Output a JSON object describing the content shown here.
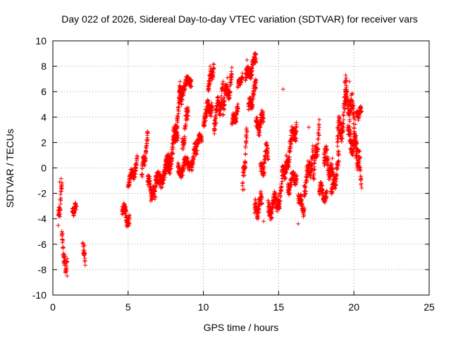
{
  "chart_data": {
    "type": "scatter",
    "title": "Day 022 of 2026, Sidereal Day-to-day VTEC variation (SDTVAR) for receiver vars",
    "xlabel": "GPS time / hours",
    "ylabel": "SDTVAR / TECUs",
    "xlim": [
      0,
      25
    ],
    "ylim": [
      -10,
      10
    ],
    "xticks": [
      0,
      5,
      10,
      15,
      20,
      25
    ],
    "yticks": [
      -10,
      -8,
      -6,
      -4,
      -2,
      0,
      2,
      4,
      6,
      8,
      10
    ],
    "grid": true,
    "marker": "+",
    "marker_color": "#ff0000",
    "segments": [
      {
        "x0": 0.35,
        "x1": 0.6,
        "y0": -4.5,
        "y1": -1.2,
        "jitter": 1.0
      },
      {
        "x0": 0.6,
        "x1": 0.85,
        "y0": -5.5,
        "y1": -8.3,
        "jitter": 0.8
      },
      {
        "x0": 0.85,
        "x1": 0.95,
        "y0": -8.3,
        "y1": -7.2,
        "jitter": 0.4
      },
      {
        "x0": 1.3,
        "x1": 1.55,
        "y0": -3.6,
        "y1": -3.0,
        "jitter": 0.4
      },
      {
        "x0": 2.0,
        "x1": 2.15,
        "y0": -6.2,
        "y1": -7.2,
        "jitter": 0.5
      },
      {
        "x0": 4.6,
        "x1": 5.1,
        "y0": -3.0,
        "y1": -4.3,
        "jitter": 0.7
      },
      {
        "x0": 5.0,
        "x1": 5.6,
        "y0": -1.2,
        "y1": 0.3,
        "jitter": 0.7
      },
      {
        "x0": 5.9,
        "x1": 6.3,
        "y0": -0.5,
        "y1": 2.3,
        "jitter": 0.8
      },
      {
        "x0": 6.3,
        "x1": 6.8,
        "y0": -1.0,
        "y1": -2.3,
        "jitter": 0.8
      },
      {
        "x0": 6.8,
        "x1": 7.8,
        "y0": -1.5,
        "y1": 0.5,
        "jitter": 1.0
      },
      {
        "x0": 7.5,
        "x1": 8.3,
        "y0": -0.5,
        "y1": 3.0,
        "jitter": 1.2
      },
      {
        "x0": 8.0,
        "x1": 8.6,
        "y0": 2.0,
        "y1": 6.2,
        "jitter": 1.2
      },
      {
        "x0": 8.4,
        "x1": 9.2,
        "y0": 6.0,
        "y1": 7.0,
        "jitter": 0.6
      },
      {
        "x0": 8.3,
        "x1": 9.1,
        "y0": -0.3,
        "y1": 0.5,
        "jitter": 0.8
      },
      {
        "x0": 8.6,
        "x1": 9.0,
        "y0": 1.5,
        "y1": 5.0,
        "jitter": 1.0
      },
      {
        "x0": 9.2,
        "x1": 9.6,
        "y0": 0.2,
        "y1": 2.0,
        "jitter": 0.8
      },
      {
        "x0": 9.6,
        "x1": 9.9,
        "y0": 2.2,
        "y1": 2.5,
        "jitter": 0.4
      },
      {
        "x0": 10.0,
        "x1": 10.6,
        "y0": 4.0,
        "y1": 5.0,
        "jitter": 0.9
      },
      {
        "x0": 10.3,
        "x1": 10.7,
        "y0": 6.5,
        "y1": 8.0,
        "jitter": 0.8
      },
      {
        "x0": 10.7,
        "x1": 11.3,
        "y0": 3.5,
        "y1": 6.0,
        "jitter": 1.2
      },
      {
        "x0": 11.3,
        "x1": 11.9,
        "y0": 5.0,
        "y1": 7.0,
        "jitter": 1.0
      },
      {
        "x0": 11.9,
        "x1": 12.3,
        "y0": 3.5,
        "y1": 4.5,
        "jitter": 0.6
      },
      {
        "x0": 12.3,
        "x1": 12.6,
        "y0": 6.5,
        "y1": 7.1,
        "jitter": 0.4
      },
      {
        "x0": 12.8,
        "x1": 13.5,
        "y0": 7.0,
        "y1": 8.5,
        "jitter": 0.8
      },
      {
        "x0": 13.0,
        "x1": 13.5,
        "y0": 4.5,
        "y1": 6.5,
        "jitter": 0.8
      },
      {
        "x0": 12.6,
        "x1": 12.9,
        "y0": -1.5,
        "y1": 2.5,
        "jitter": 1.0
      },
      {
        "x0": 13.4,
        "x1": 13.9,
        "y0": -3.5,
        "y1": -2.5,
        "jitter": 1.0
      },
      {
        "x0": 13.5,
        "x1": 14.0,
        "y0": 3.0,
        "y1": 4.0,
        "jitter": 0.9
      },
      {
        "x0": 13.8,
        "x1": 14.3,
        "y0": -0.5,
        "y1": 1.5,
        "jitter": 1.0
      },
      {
        "x0": 14.3,
        "x1": 14.9,
        "y0": -3.5,
        "y1": -2.5,
        "jitter": 1.0
      },
      {
        "x0": 14.9,
        "x1": 15.5,
        "y0": -3.0,
        "y1": 0.5,
        "jitter": 1.2
      },
      {
        "x0": 15.5,
        "x1": 16.2,
        "y0": 0.5,
        "y1": 3.5,
        "jitter": 1.2
      },
      {
        "x0": 15.6,
        "x1": 16.2,
        "y0": -1.5,
        "y1": -0.5,
        "jitter": 0.8
      },
      {
        "x0": 16.3,
        "x1": 16.7,
        "y0": -2.0,
        "y1": -3.5,
        "jitter": 0.6
      },
      {
        "x0": 16.7,
        "x1": 17.3,
        "y0": -1.5,
        "y1": 1.0,
        "jitter": 1.2
      },
      {
        "x0": 17.3,
        "x1": 17.7,
        "y0": -0.5,
        "y1": 3.0,
        "jitter": 1.2
      },
      {
        "x0": 17.7,
        "x1": 18.2,
        "y0": -1.5,
        "y1": -2.5,
        "jitter": 0.7
      },
      {
        "x0": 18.0,
        "x1": 18.6,
        "y0": 1.0,
        "y1": -0.5,
        "jitter": 1.2
      },
      {
        "x0": 18.5,
        "x1": 19.0,
        "y0": -2.0,
        "y1": 0.5,
        "jitter": 1.0
      },
      {
        "x0": 18.9,
        "x1": 19.5,
        "y0": 2.0,
        "y1": 5.0,
        "jitter": 1.5
      },
      {
        "x0": 19.4,
        "x1": 20.0,
        "y0": 6.0,
        "y1": 4.0,
        "jitter": 1.5
      },
      {
        "x0": 19.6,
        "x1": 20.2,
        "y0": 2.5,
        "y1": 1.5,
        "jitter": 1.2
      },
      {
        "x0": 20.0,
        "x1": 20.5,
        "y0": 3.0,
        "y1": -1.0,
        "jitter": 1.5
      },
      {
        "x0": 20.2,
        "x1": 20.5,
        "y0": 4.0,
        "y1": 4.6,
        "jitter": 0.5
      }
    ],
    "outliers": [
      {
        "x": 0.45,
        "y": -1.1
      },
      {
        "x": 0.95,
        "y": -8.5
      },
      {
        "x": 2.1,
        "y": -6.1
      },
      {
        "x": 8.45,
        "y": 6.8
      },
      {
        "x": 10.45,
        "y": 8.0
      },
      {
        "x": 11.6,
        "y": 7.1
      },
      {
        "x": 12.9,
        "y": 8.5
      },
      {
        "x": 15.3,
        "y": 6.2
      },
      {
        "x": 16.3,
        "y": -4.4
      },
      {
        "x": 14.0,
        "y": -4.2
      },
      {
        "x": 19.7,
        "y": 6.8
      },
      {
        "x": 17.0,
        "y": 3.2
      },
      {
        "x": 12.7,
        "y": -1.7
      },
      {
        "x": 6.5,
        "y": -2.6
      },
      {
        "x": 4.9,
        "y": -4.6
      }
    ]
  }
}
